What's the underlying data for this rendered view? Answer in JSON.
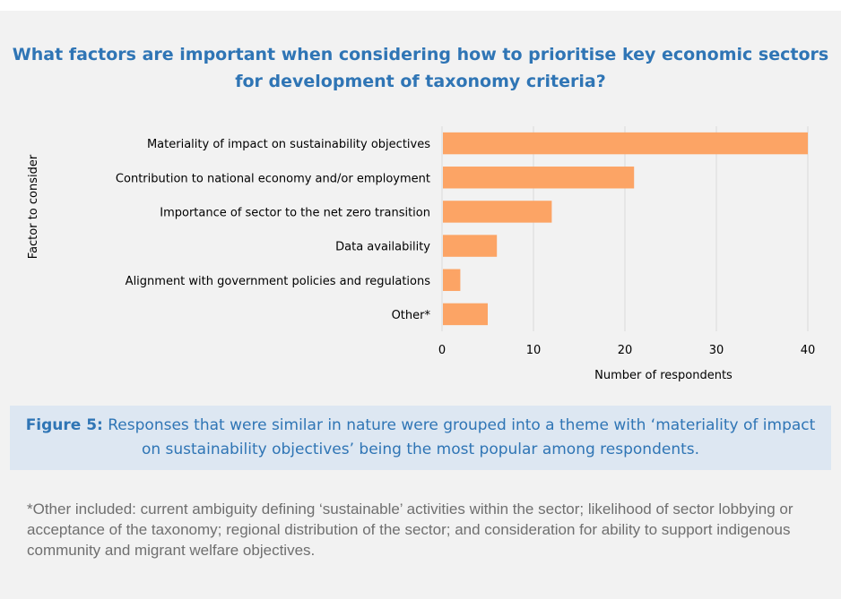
{
  "chart_data": {
    "type": "bar",
    "orientation": "horizontal",
    "title": "What factors are important when considering how to prioritise key economic sectors for development of taxonomy criteria?",
    "categories": [
      "Materiality of impact on sustainability objectives",
      "Contribution to national economy and/or employment",
      "Importance of sector to the net zero transition",
      "Data availability",
      "Alignment with government policies and regulations",
      "Other*"
    ],
    "values": [
      40,
      21,
      12,
      6,
      2,
      5
    ],
    "xlabel": "Number of respondents",
    "ylabel": "Factor to consider",
    "xlim": [
      0,
      40
    ],
    "xticks": [
      "0",
      "10",
      "20",
      "30",
      "40"
    ],
    "grid": "vertical",
    "legend": "none",
    "bar_color": "#fca465",
    "grid_color": "#d9d9d9"
  },
  "caption": {
    "label": "Figure 5:",
    "text": " Responses that were similar in nature were grouped into a theme with ‘materiality of impact on sustainability objectives’ being the most popular among respondents."
  },
  "footnote": "*Other included: current ambiguity defining ‘sustainable’ activities within the sector; likelihood of sector lobbying or acceptance of the taxonomy; regional distribution of the sector; and consideration for ability to support indigenous community and migrant welfare objectives."
}
